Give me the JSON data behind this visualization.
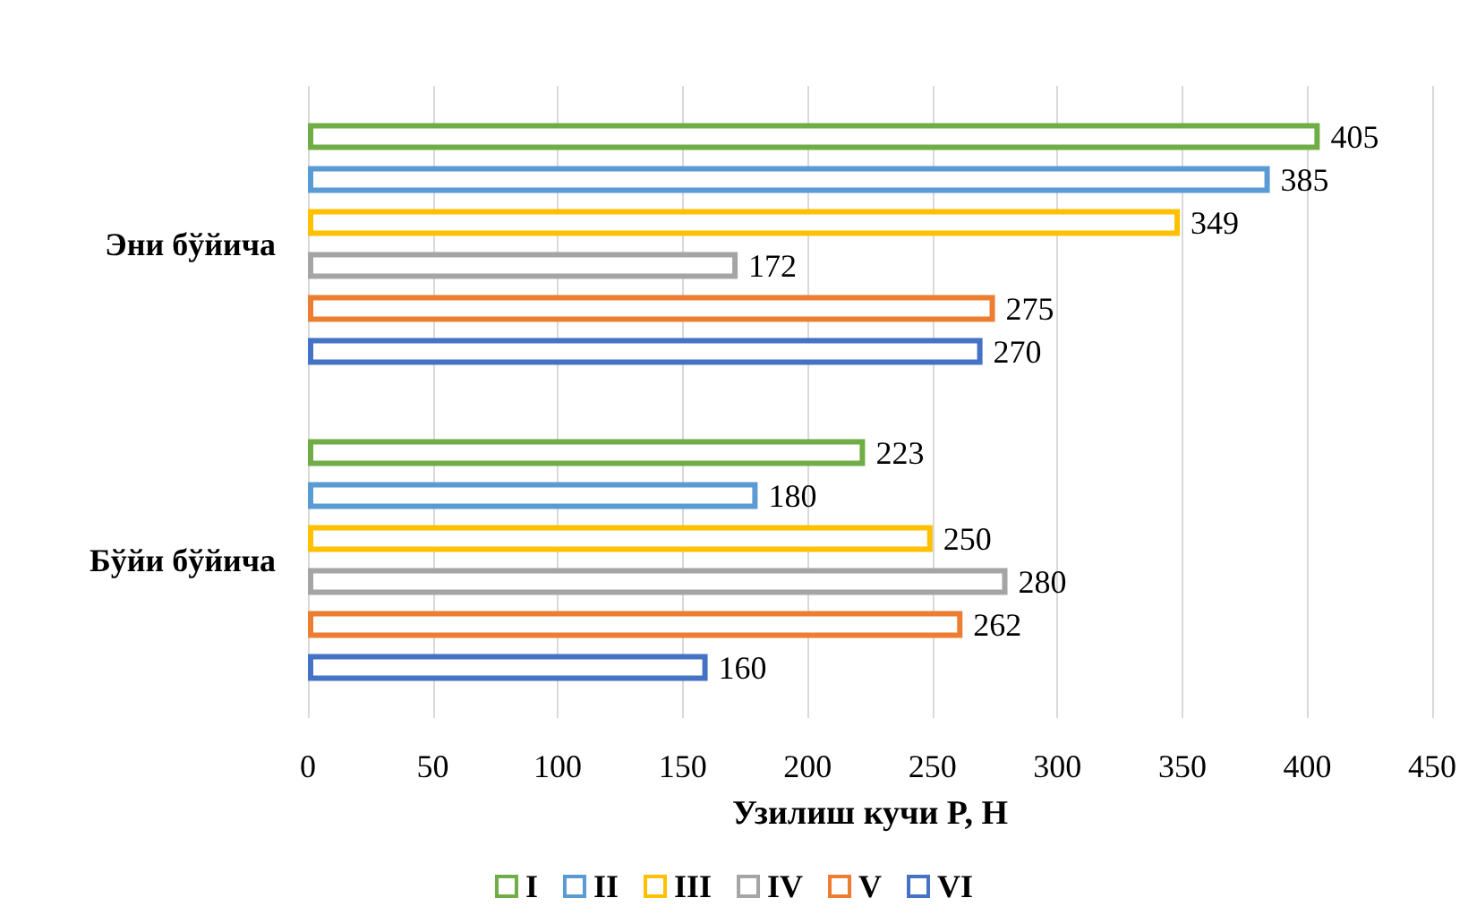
{
  "chart_data": {
    "type": "bar",
    "orientation": "horizontal",
    "xlabel": "Узилиш кучи P, Н",
    "categories": [
      "Эни бўйича",
      "Бўйи бўйича"
    ],
    "series": [
      {
        "name": "I",
        "color": "#70ad47",
        "values": [
          405,
          223
        ]
      },
      {
        "name": "II",
        "color": "#5b9bd5",
        "values": [
          385,
          180
        ]
      },
      {
        "name": "III",
        "color": "#ffc000",
        "values": [
          349,
          250
        ]
      },
      {
        "name": "IV",
        "color": "#a5a5a5",
        "values": [
          172,
          280
        ]
      },
      {
        "name": "V",
        "color": "#ed7d31",
        "values": [
          275,
          262
        ]
      },
      {
        "name": "VI",
        "color": "#4472c4",
        "values": [
          270,
          160
        ]
      }
    ],
    "xlim": [
      0,
      450
    ],
    "xticks": [
      0,
      50,
      100,
      150,
      200,
      250,
      300,
      350,
      400,
      450
    ],
    "grid": "x",
    "legend": "bottom",
    "data_labels": true
  }
}
